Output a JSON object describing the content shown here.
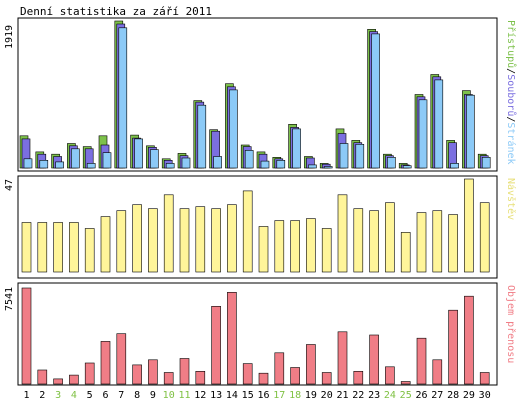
{
  "colors": {
    "visits": "#7dc14b",
    "files": "#7b6fe0",
    "pages": "#8ccaf7",
    "sites": "#fff59a",
    "transfer": "#f07d86",
    "weekday_label": "#000000",
    "weekend_label": "#7fc143",
    "grid": "#000000"
  },
  "chart_data": [
    {
      "type": "bar",
      "title": "Denní statistika za září 2011",
      "ymax_label": "1919",
      "ylim": [
        0,
        1919
      ],
      "legend_parts": [
        "Přístupů",
        "Souborů",
        "Stránek"
      ],
      "legend_separator": "/",
      "categories": [
        "1",
        "2",
        "3",
        "4",
        "5",
        "6",
        "7",
        "8",
        "9",
        "10",
        "11",
        "12",
        "13",
        "14",
        "15",
        "16",
        "17",
        "18",
        "19",
        "20",
        "21",
        "22",
        "23",
        "24",
        "25",
        "26",
        "27",
        "28",
        "29",
        "30"
      ],
      "weekend_days": [
        "3",
        "4",
        "10",
        "11",
        "17",
        "18",
        "24",
        "25"
      ],
      "series": [
        {
          "name": "Přístupů",
          "values": [
            420,
            210,
            180,
            320,
            280,
            420,
            1919,
            430,
            290,
            120,
            190,
            880,
            500,
            1100,
            300,
            210,
            140,
            570,
            150,
            60,
            510,
            360,
            1810,
            180,
            60,
            960,
            1220,
            360,
            1010,
            180
          ]
        },
        {
          "name": "Souborů",
          "values": [
            380,
            180,
            150,
            290,
            250,
            300,
            1880,
            390,
            270,
            100,
            160,
            860,
            480,
            1060,
            280,
            180,
            120,
            530,
            130,
            50,
            450,
            330,
            1780,
            160,
            40,
            930,
            1190,
            330,
            960,
            160
          ]
        },
        {
          "name": "Stránek",
          "values": [
            120,
            100,
            80,
            250,
            60,
            200,
            1830,
            380,
            240,
            60,
            130,
            820,
            150,
            1020,
            230,
            90,
            100,
            510,
            40,
            20,
            320,
            310,
            1750,
            140,
            30,
            890,
            1150,
            60,
            950,
            140
          ]
        }
      ]
    },
    {
      "type": "bar",
      "ymax_label": "47",
      "ylim": [
        0,
        47
      ],
      "legend_parts": [
        "Návštěv"
      ],
      "series": [
        {
          "name": "Návštěv",
          "values": [
            25,
            25,
            25,
            25,
            22,
            28,
            31,
            34,
            32,
            39,
            32,
            33,
            32,
            34,
            41,
            23,
            26,
            26,
            27,
            22,
            39,
            32,
            31,
            35,
            20,
            30,
            31,
            29,
            47,
            35
          ]
        }
      ]
    },
    {
      "type": "bar",
      "ymax_label": "7541",
      "ylim": [
        0,
        7541
      ],
      "legend_parts": [
        "Objem přenosu"
      ],
      "series": [
        {
          "name": "Objem přenosu",
          "values": [
            7541,
            1100,
            400,
            700,
            1650,
            3350,
            3950,
            1500,
            1900,
            900,
            2000,
            1000,
            6100,
            7200,
            1600,
            850,
            2450,
            1300,
            3100,
            900,
            4100,
            1000,
            3850,
            1350,
            200,
            3600,
            1900,
            5800,
            6900,
            900
          ]
        }
      ]
    }
  ]
}
